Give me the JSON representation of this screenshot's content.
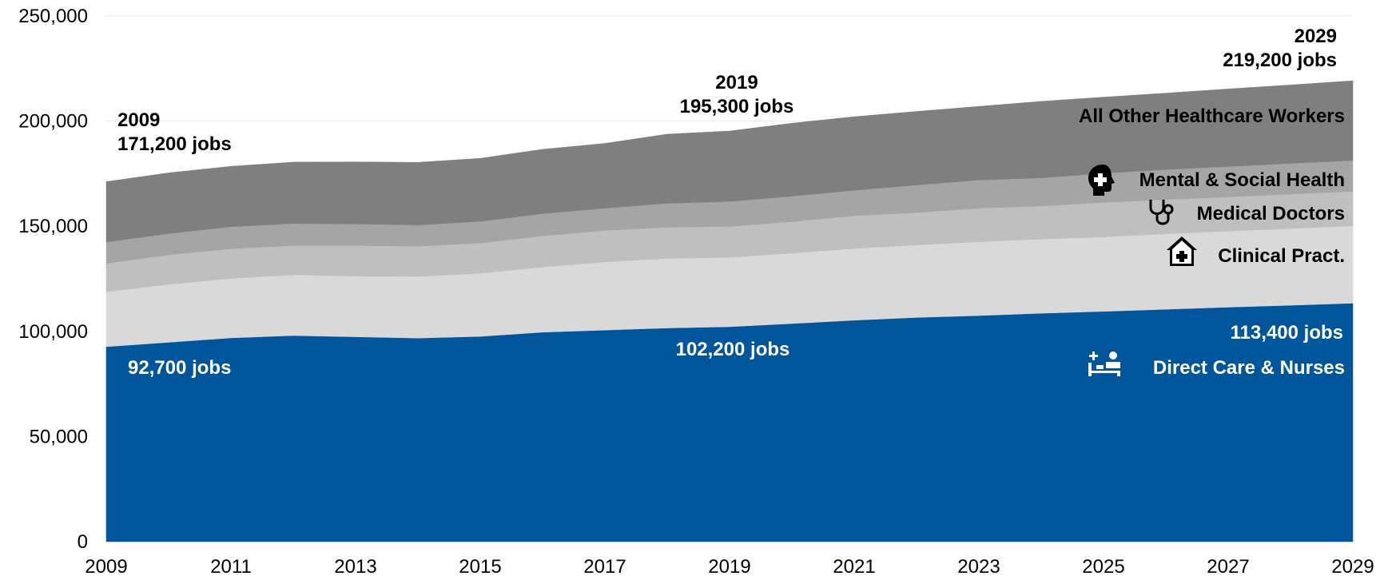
{
  "chart_data": {
    "type": "area",
    "stacked": true,
    "x": [
      2009,
      2010,
      2011,
      2012,
      2013,
      2014,
      2015,
      2016,
      2017,
      2018,
      2019,
      2020,
      2021,
      2022,
      2023,
      2024,
      2025,
      2026,
      2027,
      2028,
      2029
    ],
    "xlim": [
      2009,
      2029
    ],
    "ylim": [
      0,
      250000
    ],
    "x_ticks": [
      2009,
      2011,
      2013,
      2015,
      2017,
      2019,
      2021,
      2023,
      2025,
      2027,
      2029
    ],
    "x_tick_labels": [
      "2009",
      "2011",
      "2013",
      "2015",
      "2017",
      "2019",
      "2021",
      "2023",
      "2025",
      "2027",
      "2029"
    ],
    "y_ticks": [
      0,
      50000,
      100000,
      150000,
      200000,
      250000
    ],
    "y_tick_labels": [
      "0",
      "50,000",
      "100,000",
      "150,000",
      "200,000",
      "250,000"
    ],
    "grid": "horizontal",
    "legend": "none",
    "series": [
      {
        "name": "Direct Care & Nurses",
        "color": "#00559b",
        "icon": "patient-bed-icon",
        "values": [
          92700,
          94800,
          96900,
          98000,
          97400,
          96800,
          97600,
          99600,
          100600,
          101600,
          102200,
          103700,
          105300,
          106600,
          107500,
          108600,
          109500,
          110500,
          111500,
          112400,
          113400
        ]
      },
      {
        "name": "Clinical Pract.",
        "color": "#d9d9d9",
        "icon": "house-medical-icon",
        "values": [
          26100,
          27600,
          28300,
          28900,
          28900,
          29300,
          30000,
          31000,
          32400,
          33100,
          33000,
          33500,
          34100,
          34500,
          35100,
          35300,
          35400,
          35900,
          36200,
          36500,
          36800
        ]
      },
      {
        "name": "Medical Doctors",
        "color": "#bfbfbf",
        "icon": "stethoscope-icon",
        "values": [
          13500,
          14000,
          14100,
          13900,
          14500,
          14400,
          14400,
          14800,
          15000,
          14800,
          14700,
          15000,
          15600,
          15400,
          16000,
          15700,
          16400,
          16300,
          16200,
          16400,
          16400
        ]
      },
      {
        "name": "Mental & Social Health",
        "color": "#a5a5a5",
        "icon": "head-medical-icon",
        "values": [
          10200,
          10100,
          10500,
          10500,
          10300,
          10100,
          10300,
          10600,
          10600,
          11400,
          11900,
          12100,
          12100,
          13100,
          13400,
          13400,
          13900,
          14300,
          14500,
          14600,
          14700
        ]
      },
      {
        "name": "All Other Healthcare Workers",
        "color": "#7f7f7f",
        "values": [
          28700,
          28900,
          28700,
          29200,
          29500,
          29800,
          30000,
          30600,
          30800,
          32900,
          33500,
          34700,
          35000,
          35000,
          35000,
          36400,
          36200,
          36300,
          36900,
          37300,
          37900
        ]
      }
    ],
    "annotations": {
      "total_2009": {
        "year": "2009",
        "jobs": "171,200 jobs"
      },
      "total_2019": {
        "year": "2019",
        "jobs": "195,300 jobs"
      },
      "total_2029": {
        "year": "2029",
        "jobs": "219,200 jobs"
      },
      "direct_2009": "92,700 jobs",
      "direct_2019": "102,200 jobs",
      "direct_2029": "113,400 jobs"
    }
  }
}
